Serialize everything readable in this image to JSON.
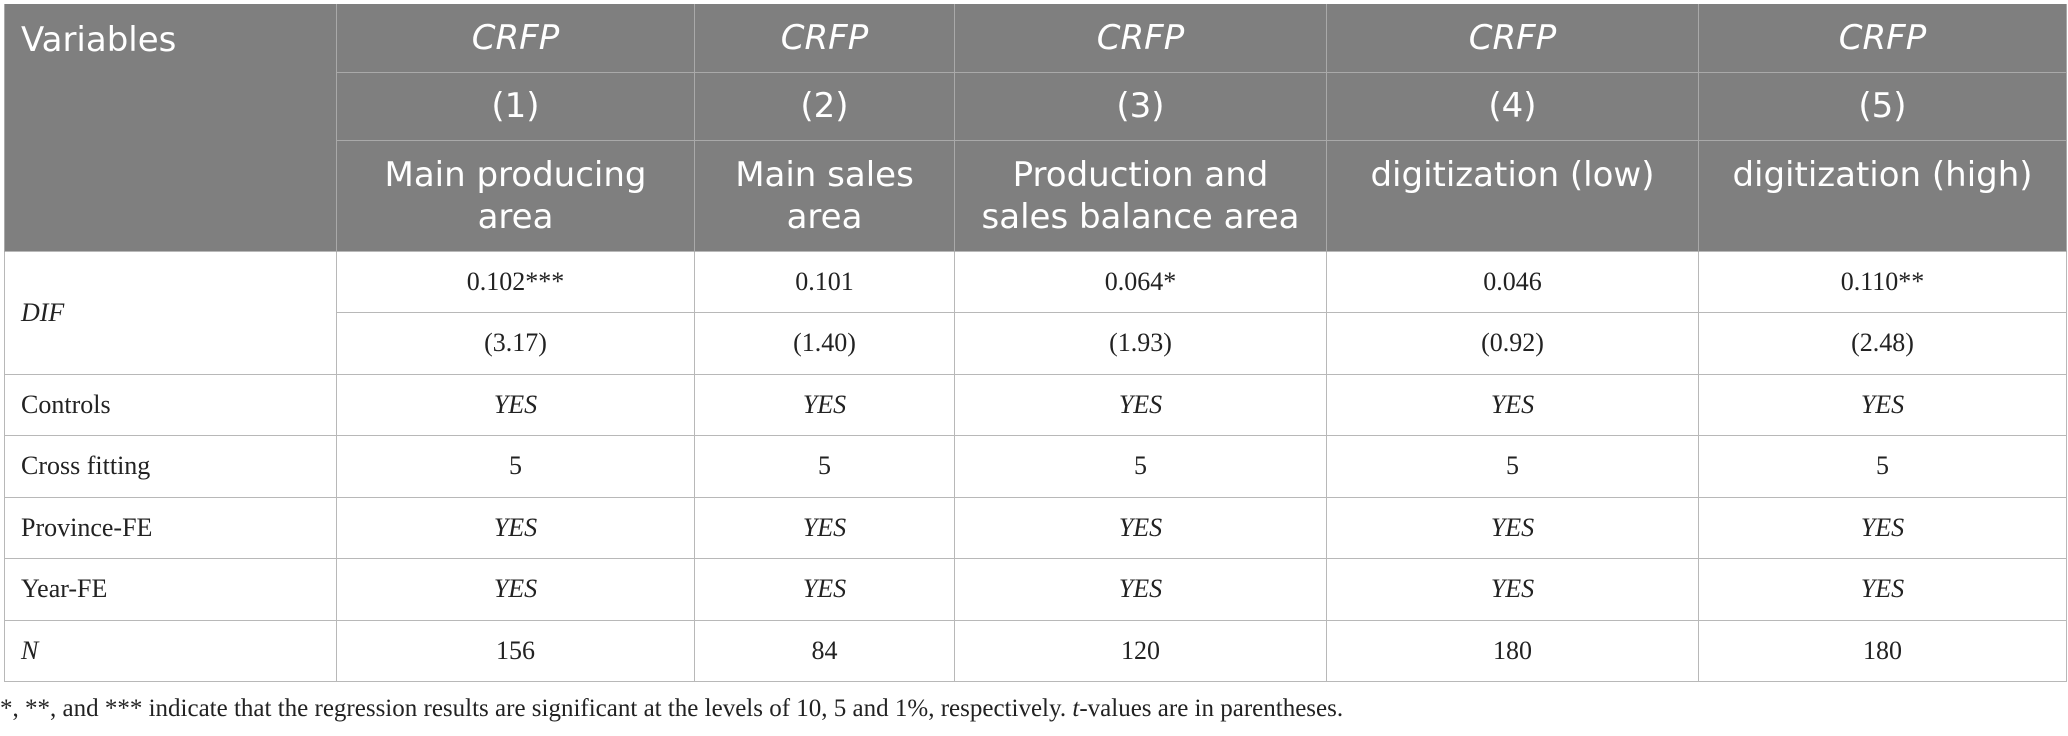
{
  "header": {
    "variables_label": "Variables",
    "dependent": [
      "CRFP",
      "CRFP",
      "CRFP",
      "CRFP",
      "CRFP"
    ],
    "numbers": [
      "(1)",
      "(2)",
      "(3)",
      "(4)",
      "(5)"
    ],
    "groups": [
      {
        "line1": "Main producing",
        "line2": "area"
      },
      {
        "line1": "Main sales",
        "line2": "area"
      },
      {
        "line1": "Production and",
        "line2": "sales balance area"
      },
      {
        "line1": "digitization (low)",
        "line2": ""
      },
      {
        "line1": "digitization (high)",
        "line2": ""
      }
    ]
  },
  "rows": {
    "dif_label": "DIF",
    "dif_coef": [
      "0.102***",
      "0.101",
      "0.064*",
      "0.046",
      "0.110**"
    ],
    "dif_t": [
      "(3.17)",
      "(1.40)",
      "(1.93)",
      "(0.92)",
      "(2.48)"
    ],
    "controls": {
      "label": "Controls",
      "values": [
        "YES",
        "YES",
        "YES",
        "YES",
        "YES"
      ]
    },
    "cross_fitting": {
      "label": "Cross fitting",
      "values": [
        "5",
        "5",
        "5",
        "5",
        "5"
      ]
    },
    "province_fe": {
      "label": "Province-FE",
      "values": [
        "YES",
        "YES",
        "YES",
        "YES",
        "YES"
      ]
    },
    "year_fe": {
      "label": "Year-FE",
      "values": [
        "YES",
        "YES",
        "YES",
        "YES",
        "YES"
      ]
    },
    "n": {
      "label": "N",
      "values": [
        "156",
        "84",
        "120",
        "180",
        "180"
      ]
    }
  },
  "note": {
    "part1": "*, **, and *** indicate that the regression results are significant at the levels of 10, 5 and 1%, respectively. ",
    "t_italic": "t",
    "part2": "-values are in parentheses."
  }
}
